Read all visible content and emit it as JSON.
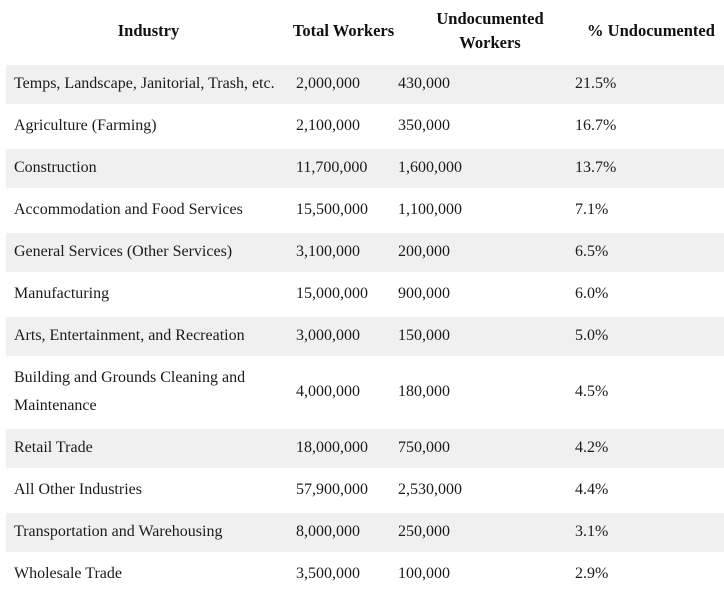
{
  "page": {
    "background": "#ffffff",
    "zebra_row_color": "#f0f0f0",
    "text_color": "#1b1b1b"
  },
  "table": {
    "headers": {
      "industry": "Industry",
      "total_workers": "Total Workers",
      "undocumented_workers": "Undocumented Workers",
      "pct_undocumented": "% Undocumented"
    },
    "rows": [
      {
        "industry": "Temps, Landscape, Janitorial, Trash, etc.",
        "total_workers": "2,000,000",
        "undocumented_workers": "430,000",
        "pct_undocumented": "21.5%"
      },
      {
        "industry": "Agriculture (Farming)",
        "total_workers": "2,100,000",
        "undocumented_workers": "350,000",
        "pct_undocumented": "16.7%"
      },
      {
        "industry": "Construction",
        "total_workers": "11,700,000",
        "undocumented_workers": "1,600,000",
        "pct_undocumented": "13.7%"
      },
      {
        "industry": "Accommodation and Food Services",
        "total_workers": "15,500,000",
        "undocumented_workers": "1,100,000",
        "pct_undocumented": "7.1%"
      },
      {
        "industry": "General Services (Other Services)",
        "total_workers": "3,100,000",
        "undocumented_workers": "200,000",
        "pct_undocumented": "6.5%"
      },
      {
        "industry": "Manufacturing",
        "total_workers": "15,000,000",
        "undocumented_workers": "900,000",
        "pct_undocumented": "6.0%"
      },
      {
        "industry": "Arts, Entertainment, and Recreation",
        "total_workers": "3,000,000",
        "undocumented_workers": "150,000",
        "pct_undocumented": "5.0%"
      },
      {
        "industry": "Building and Grounds Cleaning and Maintenance",
        "total_workers": "4,000,000",
        "undocumented_workers": "180,000",
        "pct_undocumented": "4.5%"
      },
      {
        "industry": "Retail Trade",
        "total_workers": "18,000,000",
        "undocumented_workers": "750,000",
        "pct_undocumented": "4.2%"
      },
      {
        "industry": "All Other Industries",
        "total_workers": "57,900,000",
        "undocumented_workers": "2,530,000",
        "pct_undocumented": "4.4%"
      },
      {
        "industry": "Transportation and Warehousing",
        "total_workers": "8,000,000",
        "undocumented_workers": "250,000",
        "pct_undocumented": "3.1%"
      },
      {
        "industry": "Wholesale Trade",
        "total_workers": "3,500,000",
        "undocumented_workers": "100,000",
        "pct_undocumented": "2.9%"
      }
    ]
  }
}
